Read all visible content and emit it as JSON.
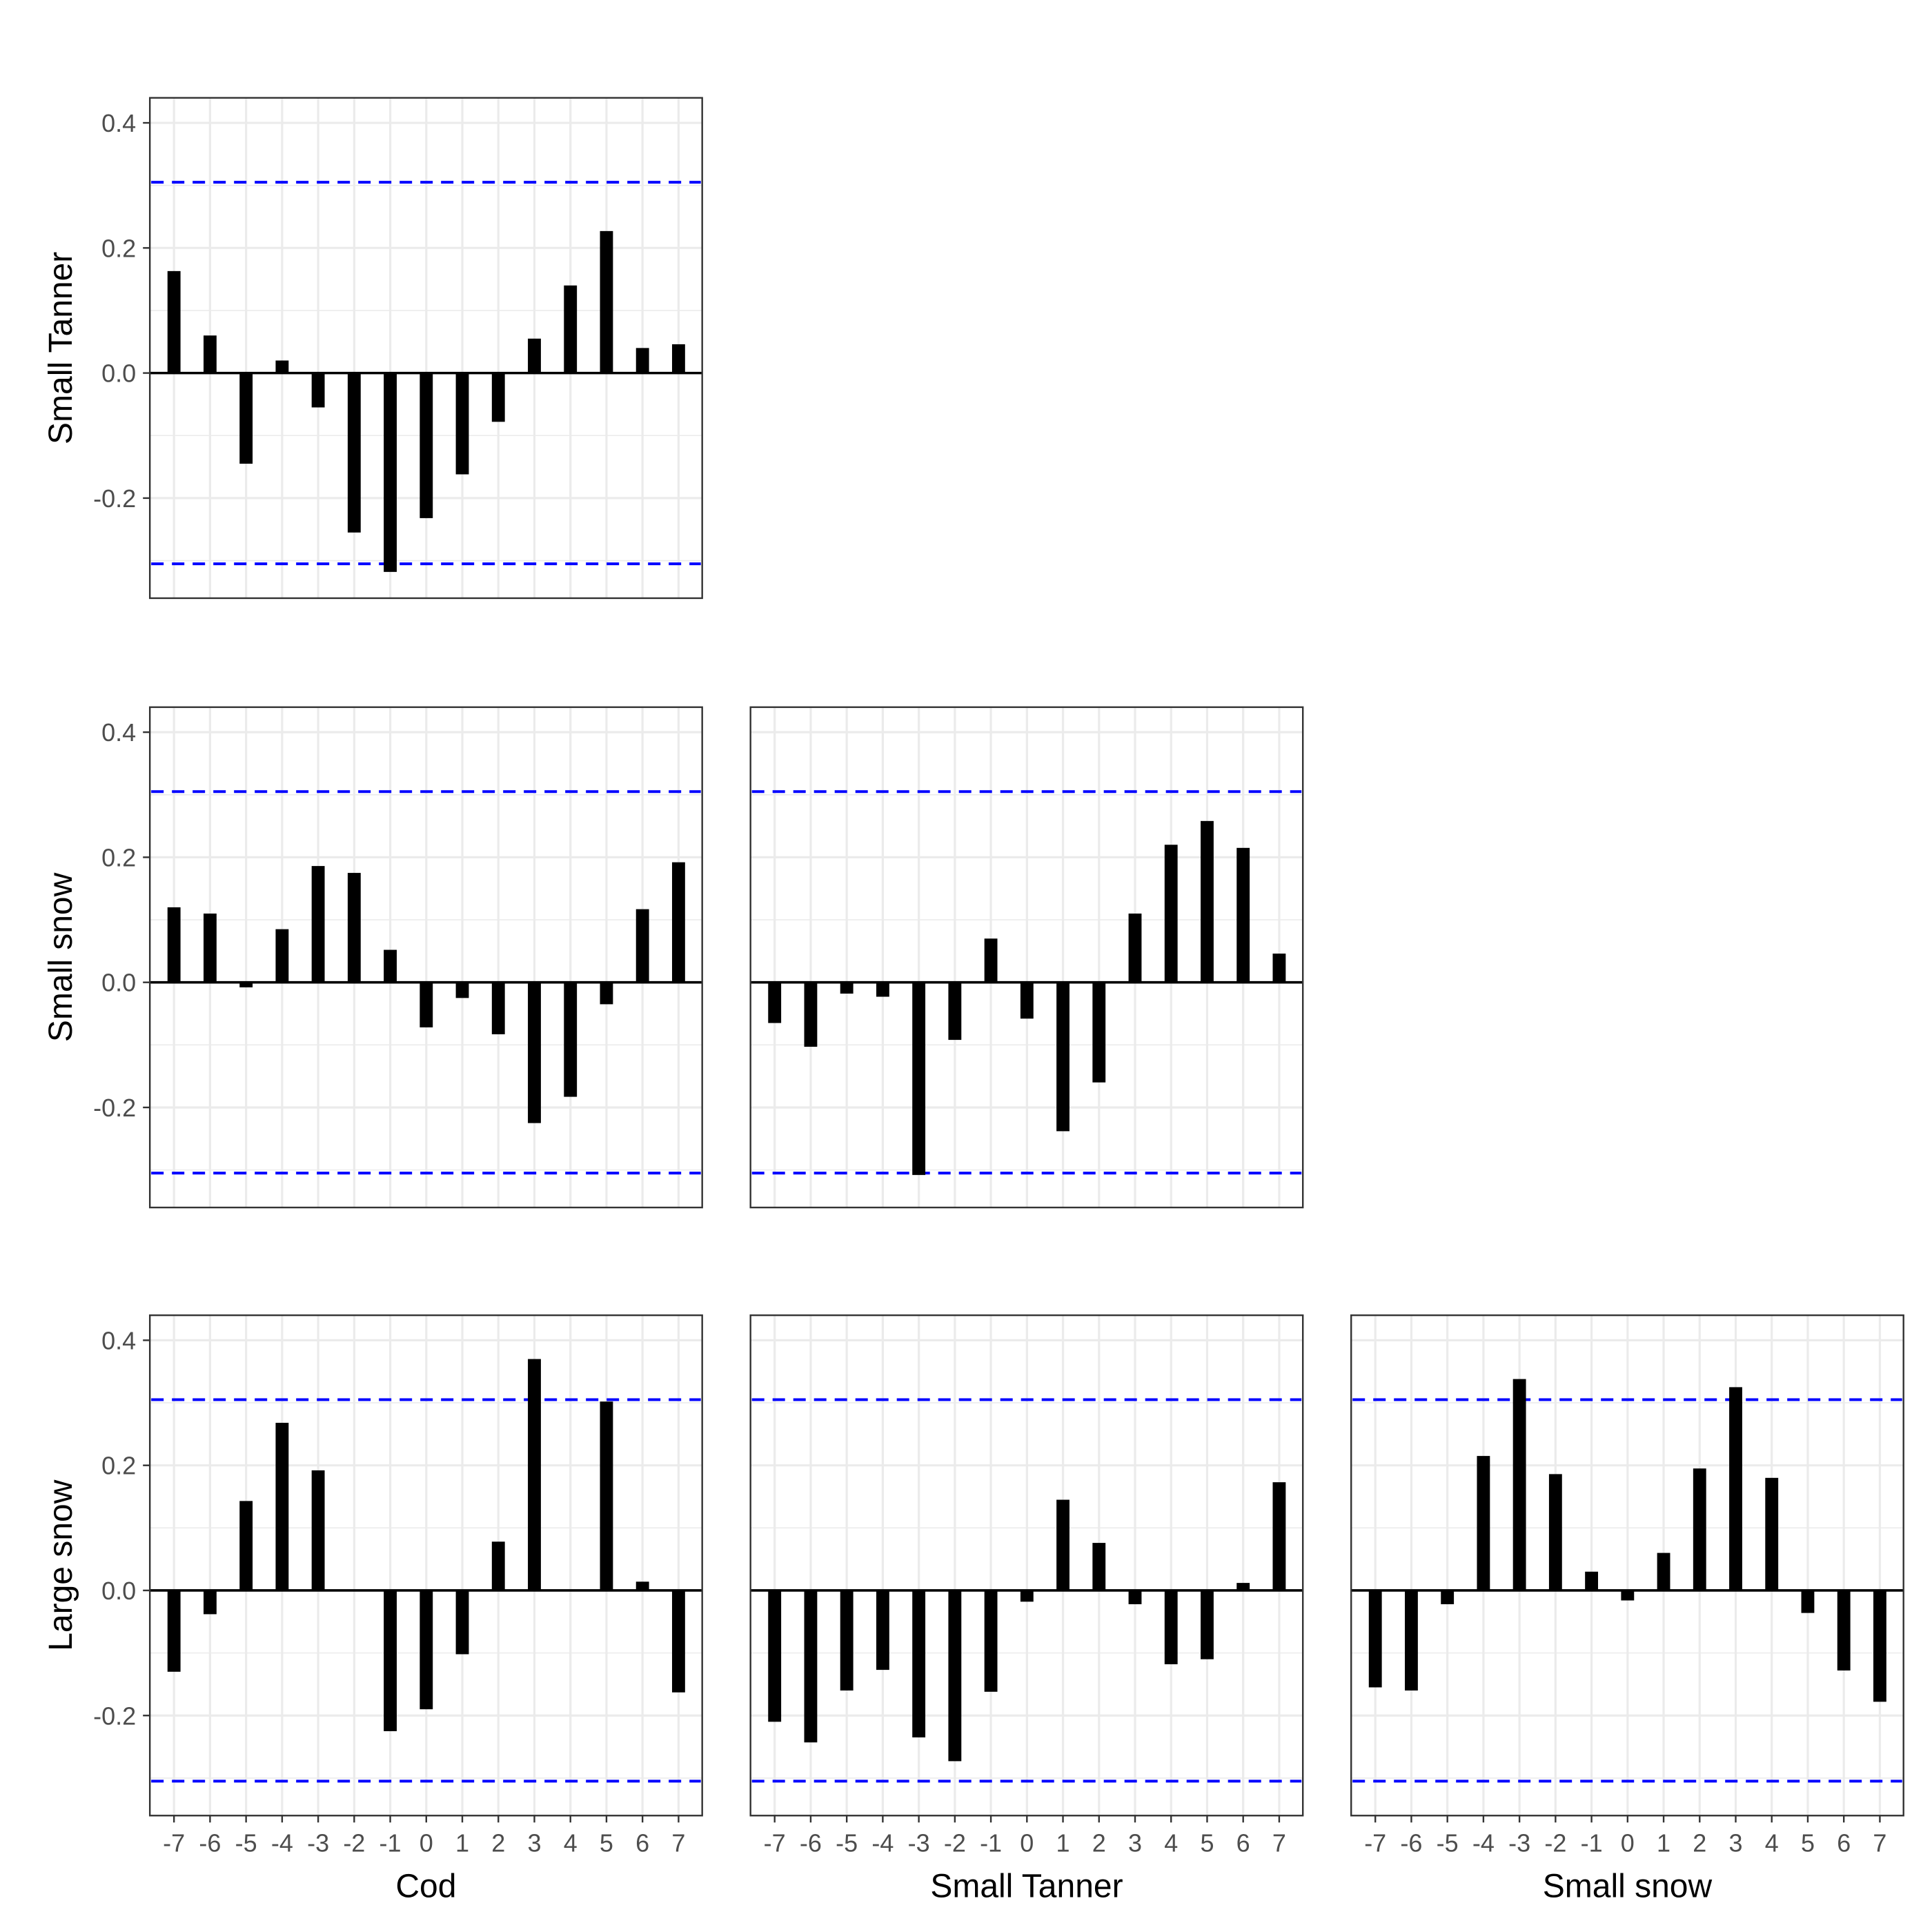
{
  "chart_data": {
    "type": "bar",
    "layout": "lower-triangular facet grid",
    "lags": [
      -7,
      -6,
      -5,
      -4,
      -3,
      -2,
      -1,
      0,
      1,
      2,
      3,
      4,
      5,
      6,
      7
    ],
    "ylim": [
      -0.36,
      0.44
    ],
    "y_ticks": [
      0.4,
      0.2,
      0.0,
      -0.2
    ],
    "y_tick_labels": [
      "0.4",
      "0.2",
      "0.0",
      "-0.2"
    ],
    "x_tick_labels": [
      "-7",
      "-6",
      "-5",
      "-4",
      "-3",
      "-2",
      "-1",
      "0",
      "1",
      "2",
      "3",
      "4",
      "5",
      "6",
      "7"
    ],
    "significance_bound": 0.305,
    "grid": true,
    "colors": {
      "bars": "#000000",
      "bounds": "#0000ff",
      "grid": "#ebebeb",
      "panel_border": "#333333"
    },
    "row_labels": [
      "Small Tanner",
      "Small snow",
      "Large snow"
    ],
    "col_labels": [
      "Cod",
      "Small Tanner",
      "Small snow"
    ],
    "panels": [
      {
        "row": 0,
        "col": 0,
        "x_series": "Cod",
        "y_series": "Small Tanner",
        "values": [
          0.163,
          0.06,
          -0.145,
          0.02,
          -0.055,
          -0.255,
          -0.318,
          -0.232,
          -0.162,
          -0.078,
          0.055,
          0.14,
          0.227,
          0.04,
          0.046
        ]
      },
      {
        "row": 1,
        "col": 0,
        "x_series": "Cod",
        "y_series": "Small snow",
        "values": [
          0.12,
          0.11,
          -0.008,
          0.085,
          0.186,
          0.175,
          0.052,
          -0.072,
          -0.025,
          -0.083,
          -0.225,
          -0.183,
          -0.035,
          0.117,
          0.192
        ]
      },
      {
        "row": 1,
        "col": 1,
        "x_series": "Small Tanner",
        "y_series": "Small snow",
        "values": [
          -0.065,
          -0.103,
          -0.018,
          -0.023,
          -0.308,
          -0.092,
          0.07,
          -0.058,
          -0.238,
          -0.16,
          0.11,
          0.22,
          0.258,
          0.215,
          0.046
        ]
      },
      {
        "row": 2,
        "col": 0,
        "x_series": "Cod",
        "y_series": "Large snow",
        "values": [
          -0.13,
          -0.038,
          0.143,
          0.268,
          0.192,
          0.0,
          -0.225,
          -0.19,
          -0.102,
          0.078,
          0.37,
          0.0,
          0.302,
          0.014,
          -0.163
        ]
      },
      {
        "row": 2,
        "col": 1,
        "x_series": "Small Tanner",
        "y_series": "Large snow",
        "values": [
          -0.21,
          -0.243,
          -0.16,
          -0.127,
          -0.235,
          -0.273,
          -0.162,
          -0.018,
          0.145,
          0.076,
          -0.022,
          -0.118,
          -0.11,
          0.012,
          0.173
        ]
      },
      {
        "row": 2,
        "col": 2,
        "x_series": "Small snow",
        "y_series": "Large snow",
        "values": [
          -0.155,
          -0.16,
          -0.022,
          0.215,
          0.338,
          0.186,
          0.03,
          -0.016,
          0.06,
          0.195,
          0.325,
          0.18,
          -0.036,
          -0.128,
          -0.178
        ]
      }
    ]
  }
}
